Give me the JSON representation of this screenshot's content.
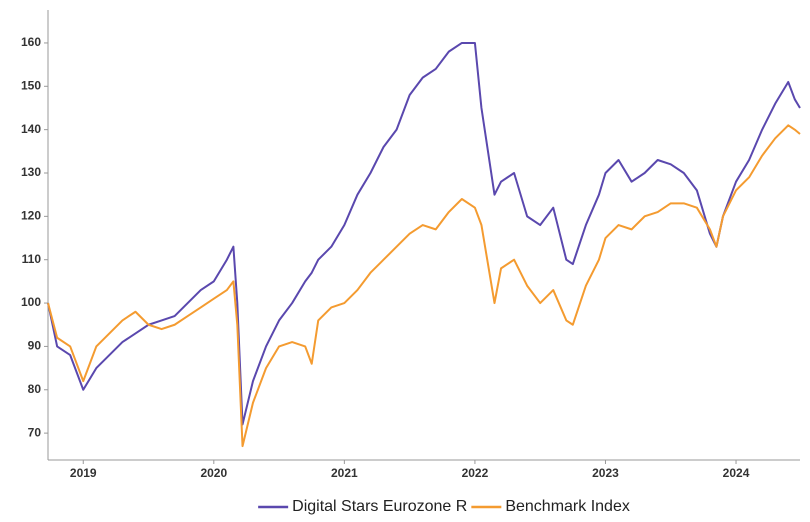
{
  "chart_data": {
    "type": "line",
    "x": [
      2018.73,
      2018.8,
      2018.9,
      2019.0,
      2019.1,
      2019.2,
      2019.3,
      2019.4,
      2019.5,
      2019.6,
      2019.7,
      2019.8,
      2019.9,
      2020.0,
      2020.1,
      2020.15,
      2020.18,
      2020.22,
      2020.3,
      2020.4,
      2020.5,
      2020.6,
      2020.7,
      2020.75,
      2020.8,
      2020.9,
      2021.0,
      2021.1,
      2021.2,
      2021.3,
      2021.4,
      2021.5,
      2021.6,
      2021.7,
      2021.8,
      2021.9,
      2022.0,
      2022.05,
      2022.15,
      2022.2,
      2022.3,
      2022.4,
      2022.5,
      2022.6,
      2022.7,
      2022.75,
      2022.85,
      2022.95,
      2023.0,
      2023.1,
      2023.2,
      2023.3,
      2023.4,
      2023.5,
      2023.6,
      2023.7,
      2023.8,
      2023.85,
      2023.9,
      2024.0,
      2024.1,
      2024.2,
      2024.3,
      2024.4,
      2024.45,
      2024.49
    ],
    "series": [
      {
        "name": "Digital Stars Eurozone R",
        "color": "#5a48ae",
        "values": [
          100,
          90,
          88,
          80,
          85,
          88,
          91,
          93,
          95,
          96,
          97,
          100,
          103,
          105,
          110,
          113,
          100,
          72,
          82,
          90,
          96,
          100,
          105,
          107,
          110,
          113,
          118,
          125,
          130,
          136,
          140,
          148,
          152,
          154,
          158,
          160,
          160,
          145,
          125,
          128,
          130,
          120,
          118,
          122,
          110,
          109,
          118,
          125,
          130,
          133,
          128,
          130,
          133,
          132,
          130,
          126,
          116,
          113,
          120,
          128,
          133,
          140,
          146,
          151,
          147,
          145
        ]
      },
      {
        "name": "Benchmark Index",
        "color": "#f49b30",
        "values": [
          100,
          92,
          90,
          82,
          90,
          93,
          96,
          98,
          95,
          94,
          95,
          97,
          99,
          101,
          103,
          105,
          95,
          67,
          77,
          85,
          90,
          91,
          90,
          86,
          96,
          99,
          100,
          103,
          107,
          110,
          113,
          116,
          118,
          117,
          121,
          124,
          122,
          118,
          100,
          108,
          110,
          104,
          100,
          103,
          96,
          95,
          104,
          110,
          115,
          118,
          117,
          120,
          121,
          123,
          123,
          122,
          117,
          113,
          120,
          126,
          129,
          134,
          138,
          141,
          140,
          139
        ]
      }
    ],
    "xlim": [
      2018.73,
      2024.49
    ],
    "xticks": [
      2019,
      2020,
      2021,
      2022,
      2023,
      2024
    ],
    "ylim": [
      63.8,
      167.6
    ],
    "yticks": [
      70,
      80,
      90,
      100,
      110,
      120,
      130,
      140,
      150,
      160
    ],
    "grid": false,
    "legend": "bottom"
  }
}
